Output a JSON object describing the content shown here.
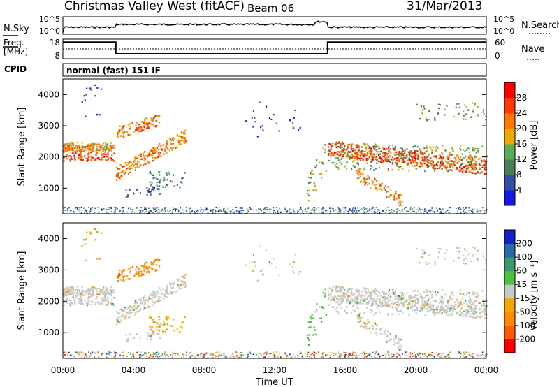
{
  "header": {
    "station": "Christmas Valley West (fitACF)",
    "beam": "Beam 06",
    "date": "31/Mar/2013"
  },
  "side_labels": {
    "nsky": "N.Sky",
    "freq": "Freq.",
    "freq_unit": "[MHz]",
    "cpid": "CPID",
    "nsearch": "N.Search",
    "nave": "Nave"
  },
  "cpid_text": "normal (fast) 151 IF",
  "colors": {
    "power": [
      "#1418e8",
      "#2f4fa8",
      "#4a7e5a",
      "#5aab5a",
      "#f0a800",
      "#ff7800",
      "#ff3a00",
      "#ff0000"
    ],
    "velocity": [
      "#ff0000",
      "#ff5a00",
      "#ff8c00",
      "#f0a800",
      "#c8c8c8",
      "#50c040",
      "#3a9a6a",
      "#2a6aa8",
      "#1420c8"
    ]
  },
  "chart_data": [
    {
      "type": "line",
      "panel": "noise",
      "left_axis": {
        "label": "N.Sky",
        "ticks": [
          "10^5",
          "10^0"
        ]
      },
      "right_axis": {
        "label": "N.Search",
        "ticks": [
          "10^5",
          "10^0"
        ]
      }
    },
    {
      "type": "line",
      "panel": "frequency",
      "left_axis": {
        "label": "Freq. [MHz]",
        "ticks": [
          "18",
          "8"
        ],
        "ylim": [
          8,
          18
        ]
      },
      "right_axis": {
        "label": "Nave",
        "ticks": [
          "60",
          "0"
        ],
        "ylim": [
          0,
          60
        ]
      },
      "series": [
        {
          "name": "Freq.",
          "x_hours": [
            0,
            3,
            3,
            15,
            15,
            24
          ],
          "values": [
            16.5,
            16.5,
            10.5,
            10.5,
            16.5,
            16.5
          ]
        }
      ]
    },
    {
      "type": "heatmap",
      "panel": "power",
      "ylabel": "Slant Range [km]",
      "yticks": [
        1000,
        2000,
        3000,
        4000
      ],
      "ylim": [
        180,
        4500
      ],
      "xlim_hours": [
        0,
        24
      ],
      "colorbar": {
        "label": "Power [dB]",
        "ticks": [
          "4",
          "8",
          "12",
          "16",
          "20",
          "24",
          "28"
        ]
      }
    },
    {
      "type": "heatmap",
      "panel": "velocity",
      "ylabel": "Slant Range [km]",
      "yticks": [
        1000,
        2000,
        3000,
        4000
      ],
      "ylim": [
        180,
        4500
      ],
      "xlim_hours": [
        0,
        24
      ],
      "xlabel": "Time UT",
      "xticks": [
        "00:00",
        "04:00",
        "08:00",
        "12:00",
        "16:00",
        "20:00",
        "00:00"
      ],
      "colorbar": {
        "label": "Velocity [m s⁻¹]",
        "ticks": [
          "200",
          "100",
          "50",
          "15",
          "-15",
          "-50",
          "-100",
          "-200"
        ]
      }
    }
  ]
}
